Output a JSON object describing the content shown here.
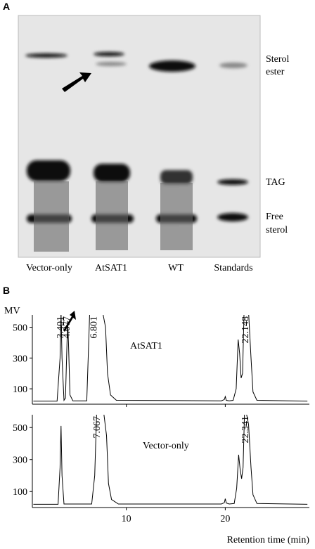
{
  "panel_a": {
    "label": "A",
    "lanes": [
      "Vector-only",
      "AtSAT1",
      "WT",
      "Standards"
    ],
    "band_labels": {
      "sterol_ester": [
        "Sterol",
        "ester"
      ],
      "tag": "TAG",
      "free_sterol": [
        "Free",
        "sterol"
      ]
    }
  },
  "panel_b_label": "B",
  "chart_data": [
    {
      "type": "line",
      "label": "AtSAT1",
      "ylabel": "MV",
      "x": [
        0.6,
        3.0,
        3.3,
        3.4,
        3.5,
        3.7,
        3.85,
        4.0,
        4.07,
        4.15,
        4.3,
        4.6,
        6.0,
        6.3,
        6.5,
        6.8,
        7.2,
        7.6,
        7.9,
        8.1,
        8.4,
        9,
        19.6,
        19.9,
        20.0,
        20.1,
        20.4,
        20.8,
        21.1,
        21.3,
        21.45,
        21.6,
        21.75,
        21.9,
        22.1,
        22.35,
        22.6,
        22.8,
        23.2,
        28.3
      ],
      "y": [
        20,
        20,
        300,
        600,
        300,
        25,
        40,
        400,
        540,
        400,
        60,
        22,
        22,
        600,
        600,
        600,
        600,
        600,
        500,
        200,
        60,
        25,
        22,
        30,
        50,
        25,
        22,
        25,
        100,
        420,
        330,
        170,
        200,
        600,
        600,
        600,
        300,
        80,
        25,
        20
      ],
      "annotations": [
        {
          "text": "3.401",
          "x": 3.4
        },
        {
          "text": "4.077",
          "x": 4.07
        },
        {
          "text": "6.801",
          "x": 6.8
        },
        {
          "text": "22.148",
          "x": 22.1
        }
      ],
      "xlim": [
        0.5,
        28.5
      ],
      "xticks": [
        10,
        20
      ],
      "ylim": [
        0,
        580
      ],
      "yticks": [
        100,
        300,
        500
      ],
      "color": "#000000"
    },
    {
      "type": "line",
      "label": "Vector-only",
      "xlabel": "Retention time (min)",
      "x": [
        0.6,
        3.1,
        3.3,
        3.4,
        3.5,
        3.7,
        6.5,
        6.8,
        7.0,
        7.3,
        7.7,
        8.0,
        8.2,
        8.5,
        9.2,
        19.6,
        19.9,
        20.0,
        20.1,
        20.4,
        20.9,
        21.15,
        21.35,
        21.5,
        21.65,
        21.8,
        21.95,
        22.1,
        22.35,
        22.6,
        22.8,
        23.2,
        28.3
      ],
      "y": [
        20,
        20,
        250,
        510,
        200,
        22,
        22,
        200,
        600,
        600,
        600,
        450,
        150,
        50,
        22,
        22,
        30,
        55,
        28,
        22,
        25,
        120,
        330,
        240,
        180,
        250,
        600,
        600,
        520,
        250,
        80,
        25,
        20
      ],
      "annotations": [
        {
          "text": "7.067",
          "x": 7.1
        },
        {
          "text": "22.341",
          "x": 22.1
        }
      ],
      "xlim": [
        0.5,
        28.5
      ],
      "xticks": [
        10,
        20
      ],
      "ylim": [
        0,
        580
      ],
      "yticks": [
        100,
        300,
        500
      ],
      "color": "#000000"
    }
  ]
}
